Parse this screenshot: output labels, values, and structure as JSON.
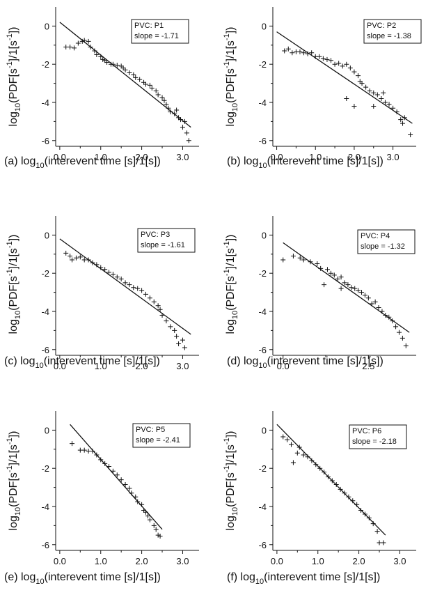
{
  "figure": {
    "x_label_text": "log",
    "x_label_sub": "10",
    "x_label_rest": "(interevent time [s]/1[s])",
    "y_label_text": "log",
    "y_label_sub": "10",
    "y_label_rest_1": "(PDF[s",
    "y_label_sup": "-1",
    "y_label_rest_2": "]/1[s",
    "y_label_sup_2": "-1",
    "y_label_rest_3": "])"
  },
  "chart_data": [
    {
      "type": "scatter",
      "panel_label": "(a)",
      "legend": [
        "PVC: P1",
        "slope = -1.71"
      ],
      "xlim": [
        -0.1,
        3.4
      ],
      "ylim": [
        -6.3,
        1.0
      ],
      "xticks": [
        0.0,
        1.0,
        2.0,
        3.0
      ],
      "xtick_labels": [
        "0.0",
        "1.0",
        "2.0",
        "3.0"
      ],
      "yticks": [
        0,
        -2,
        -4,
        -6
      ],
      "ytick_labels": [
        "0",
        "-2",
        "-4",
        "-6"
      ],
      "fit_line": {
        "x": [
          0.0,
          3.2
        ],
        "y": [
          0.2,
          -5.3
        ]
      },
      "series": [
        {
          "points": [
            [
              0.15,
              -1.1
            ],
            [
              0.25,
              -1.1
            ],
            [
              0.35,
              -1.15
            ],
            [
              0.45,
              -0.9
            ],
            [
              0.55,
              -0.8
            ],
            [
              0.6,
              -0.75
            ],
            [
              0.7,
              -0.8
            ],
            [
              0.75,
              -1.1
            ],
            [
              0.85,
              -1.3
            ],
            [
              0.9,
              -1.5
            ],
            [
              1.0,
              -1.6
            ],
            [
              1.05,
              -1.75
            ],
            [
              1.1,
              -1.8
            ],
            [
              1.15,
              -1.9
            ],
            [
              1.25,
              -2.0
            ],
            [
              1.3,
              -2.0
            ],
            [
              1.4,
              -2.05
            ],
            [
              1.5,
              -2.1
            ],
            [
              1.55,
              -2.2
            ],
            [
              1.6,
              -2.3
            ],
            [
              1.7,
              -2.45
            ],
            [
              1.8,
              -2.55
            ],
            [
              1.85,
              -2.7
            ],
            [
              1.95,
              -2.8
            ],
            [
              2.05,
              -2.95
            ],
            [
              2.1,
              -3.05
            ],
            [
              2.2,
              -3.1
            ],
            [
              2.25,
              -3.25
            ],
            [
              2.35,
              -3.4
            ],
            [
              2.4,
              -3.6
            ],
            [
              2.5,
              -3.75
            ],
            [
              2.55,
              -3.9
            ],
            [
              2.6,
              -4.1
            ],
            [
              2.65,
              -4.3
            ],
            [
              2.7,
              -4.5
            ],
            [
              2.8,
              -4.6
            ],
            [
              2.85,
              -4.4
            ],
            [
              2.9,
              -4.8
            ],
            [
              2.95,
              -4.9
            ],
            [
              3.0,
              -5.3
            ],
            [
              3.05,
              -5.0
            ],
            [
              3.1,
              -5.6
            ],
            [
              3.15,
              -6.0
            ]
          ]
        }
      ]
    },
    {
      "type": "scatter",
      "panel_label": "(b)",
      "legend": [
        "PVC: P2",
        "slope = -1.38"
      ],
      "xlim": [
        -0.1,
        3.6
      ],
      "ylim": [
        -6.3,
        1.0
      ],
      "xticks": [
        0.0,
        1.0,
        2.0,
        3.0
      ],
      "xtick_labels": [
        "0.0",
        "1.0",
        "2.0",
        "3.0"
      ],
      "yticks": [
        0,
        -2,
        -4,
        -6
      ],
      "ytick_labels": [
        "0",
        "-2",
        "-4",
        "-6"
      ],
      "fit_line": {
        "x": [
          0.0,
          3.5
        ],
        "y": [
          -0.3,
          -5.1
        ]
      },
      "series": [
        {
          "points": [
            [
              0.2,
              -1.3
            ],
            [
              0.3,
              -1.2
            ],
            [
              0.4,
              -1.4
            ],
            [
              0.5,
              -1.35
            ],
            [
              0.6,
              -1.35
            ],
            [
              0.7,
              -1.4
            ],
            [
              0.8,
              -1.45
            ],
            [
              0.9,
              -1.4
            ],
            [
              1.0,
              -1.6
            ],
            [
              1.1,
              -1.6
            ],
            [
              1.2,
              -1.7
            ],
            [
              1.3,
              -1.75
            ],
            [
              1.4,
              -1.8
            ],
            [
              1.5,
              -2.0
            ],
            [
              1.6,
              -1.95
            ],
            [
              1.7,
              -2.1
            ],
            [
              1.8,
              -2.0
            ],
            [
              1.9,
              -2.2
            ],
            [
              2.0,
              -2.4
            ],
            [
              2.1,
              -2.6
            ],
            [
              2.15,
              -2.9
            ],
            [
              2.2,
              -3.0
            ],
            [
              2.3,
              -3.2
            ],
            [
              2.4,
              -3.4
            ],
            [
              2.5,
              -3.5
            ],
            [
              2.6,
              -3.6
            ],
            [
              2.7,
              -3.8
            ],
            [
              2.75,
              -3.5
            ],
            [
              2.8,
              -4.0
            ],
            [
              2.9,
              -4.1
            ],
            [
              3.0,
              -4.3
            ],
            [
              3.1,
              -4.5
            ],
            [
              3.2,
              -4.9
            ],
            [
              3.25,
              -5.1
            ],
            [
              3.3,
              -4.8
            ],
            [
              3.45,
              -5.7
            ],
            [
              1.8,
              -3.8
            ],
            [
              2.0,
              -4.2
            ],
            [
              2.5,
              -4.2
            ]
          ]
        }
      ]
    },
    {
      "type": "scatter",
      "panel_label": "(c)",
      "legend": [
        "PVC: P3",
        "slope = -1.61"
      ],
      "xlim": [
        -0.1,
        3.4
      ],
      "ylim": [
        -6.3,
        1.0
      ],
      "xticks": [
        0.0,
        1.0,
        2.0,
        3.0
      ],
      "xtick_labels": [
        "0.0",
        "1.0",
        "2.0",
        "3.0"
      ],
      "yticks": [
        0,
        -2,
        -4,
        -6
      ],
      "ytick_labels": [
        "0",
        "-2",
        "-4",
        "-6"
      ],
      "fit_line": {
        "x": [
          0.0,
          3.2
        ],
        "y": [
          -0.2,
          -5.2
        ]
      },
      "series": [
        {
          "points": [
            [
              0.15,
              -0.95
            ],
            [
              0.25,
              -1.1
            ],
            [
              0.3,
              -1.3
            ],
            [
              0.4,
              -1.2
            ],
            [
              0.5,
              -1.15
            ],
            [
              0.6,
              -1.3
            ],
            [
              0.7,
              -1.3
            ],
            [
              0.8,
              -1.45
            ],
            [
              0.9,
              -1.55
            ],
            [
              1.0,
              -1.7
            ],
            [
              1.1,
              -1.8
            ],
            [
              1.2,
              -1.95
            ],
            [
              1.3,
              -2.05
            ],
            [
              1.4,
              -2.2
            ],
            [
              1.5,
              -2.3
            ],
            [
              1.6,
              -2.5
            ],
            [
              1.7,
              -2.6
            ],
            [
              1.8,
              -2.75
            ],
            [
              1.9,
              -2.8
            ],
            [
              2.0,
              -2.9
            ],
            [
              2.1,
              -3.1
            ],
            [
              2.2,
              -3.3
            ],
            [
              2.3,
              -3.5
            ],
            [
              2.4,
              -3.7
            ],
            [
              2.45,
              -3.9
            ],
            [
              2.5,
              -4.2
            ],
            [
              2.6,
              -4.5
            ],
            [
              2.7,
              -4.8
            ],
            [
              2.8,
              -5.0
            ],
            [
              2.85,
              -5.3
            ],
            [
              2.9,
              -5.7
            ],
            [
              3.0,
              -5.5
            ],
            [
              3.05,
              -5.9
            ]
          ]
        }
      ]
    },
    {
      "type": "scatter",
      "panel_label": "(d)",
      "legend": [
        "PVC: P4",
        "slope = -1.32"
      ],
      "xlim": [
        -0.3,
        3.9
      ],
      "ylim": [
        -6.3,
        1.0
      ],
      "xticks": [
        0.0,
        2.5
      ],
      "xtick_labels": [
        "0.0",
        "2.5"
      ],
      "yticks": [
        0,
        -2,
        -4,
        -6
      ],
      "ytick_labels": [
        "0",
        "-2",
        "-4",
        "-6"
      ],
      "fit_line": {
        "x": [
          0.0,
          3.7
        ],
        "y": [
          -0.4,
          -5.1
        ]
      },
      "series": [
        {
          "points": [
            [
              0.0,
              -1.3
            ],
            [
              0.3,
              -1.1
            ],
            [
              0.5,
              -1.2
            ],
            [
              0.6,
              -1.3
            ],
            [
              0.8,
              -1.4
            ],
            [
              1.0,
              -1.5
            ],
            [
              1.1,
              -1.75
            ],
            [
              1.3,
              -1.8
            ],
            [
              1.4,
              -2.0
            ],
            [
              1.5,
              -2.1
            ],
            [
              1.6,
              -2.3
            ],
            [
              1.7,
              -2.2
            ],
            [
              1.8,
              -2.5
            ],
            [
              1.9,
              -2.6
            ],
            [
              2.0,
              -2.75
            ],
            [
              2.1,
              -2.8
            ],
            [
              2.2,
              -2.9
            ],
            [
              2.3,
              -3.0
            ],
            [
              2.4,
              -3.15
            ],
            [
              2.5,
              -3.3
            ],
            [
              2.6,
              -3.6
            ],
            [
              2.7,
              -3.5
            ],
            [
              2.8,
              -3.8
            ],
            [
              2.9,
              -4.0
            ],
            [
              3.0,
              -4.2
            ],
            [
              3.1,
              -4.3
            ],
            [
              3.2,
              -4.5
            ],
            [
              3.3,
              -4.8
            ],
            [
              3.4,
              -5.1
            ],
            [
              3.5,
              -5.4
            ],
            [
              3.6,
              -5.8
            ],
            [
              1.2,
              -2.6
            ],
            [
              1.7,
              -2.8
            ]
          ]
        }
      ]
    },
    {
      "type": "scatter",
      "panel_label": "(e)",
      "legend": [
        "PVC: P5",
        "slope = -2.41"
      ],
      "xlim": [
        -0.1,
        3.4
      ],
      "ylim": [
        -6.3,
        1.0
      ],
      "xticks": [
        0.0,
        1.0,
        2.0,
        3.0
      ],
      "xtick_labels": [
        "0.0",
        "1.0",
        "2.0",
        "3.0"
      ],
      "yticks": [
        0,
        -2,
        -4,
        -6
      ],
      "ytick_labels": [
        "0",
        "-2",
        "-4",
        "-6"
      ],
      "fit_line": {
        "x": [
          0.25,
          2.5
        ],
        "y": [
          0.3,
          -5.2
        ]
      },
      "series": [
        {
          "points": [
            [
              0.3,
              -0.7
            ],
            [
              0.5,
              -1.05
            ],
            [
              0.6,
              -1.05
            ],
            [
              0.7,
              -1.1
            ],
            [
              0.8,
              -1.1
            ],
            [
              0.9,
              -1.3
            ],
            [
              1.0,
              -1.55
            ],
            [
              1.1,
              -1.75
            ],
            [
              1.2,
              -1.9
            ],
            [
              1.3,
              -2.15
            ],
            [
              1.4,
              -2.35
            ],
            [
              1.5,
              -2.6
            ],
            [
              1.6,
              -2.85
            ],
            [
              1.7,
              -3.05
            ],
            [
              1.75,
              -3.3
            ],
            [
              1.85,
              -3.5
            ],
            [
              1.9,
              -3.75
            ],
            [
              2.0,
              -3.9
            ],
            [
              2.05,
              -4.2
            ],
            [
              2.1,
              -4.3
            ],
            [
              2.15,
              -4.5
            ],
            [
              2.2,
              -4.7
            ],
            [
              2.3,
              -5.0
            ],
            [
              2.35,
              -5.2
            ],
            [
              2.4,
              -5.5
            ],
            [
              2.45,
              -5.55
            ]
          ]
        }
      ]
    },
    {
      "type": "scatter",
      "panel_label": "(f)",
      "legend": [
        "PVC: P6",
        "slope = -2.18"
      ],
      "xlim": [
        -0.1,
        3.4
      ],
      "ylim": [
        -6.3,
        1.0
      ],
      "xticks": [
        0.0,
        1.0,
        2.0,
        3.0
      ],
      "xtick_labels": [
        "0.0",
        "1.0",
        "2.0",
        "3.0"
      ],
      "yticks": [
        0,
        -2,
        -4,
        -6
      ],
      "ytick_labels": [
        "0",
        "-2",
        "-4",
        "-6"
      ],
      "fit_line": {
        "x": [
          0.0,
          2.65
        ],
        "y": [
          0.3,
          -5.5
        ]
      },
      "series": [
        {
          "points": [
            [
              0.15,
              -0.35
            ],
            [
              0.25,
              -0.5
            ],
            [
              0.35,
              -0.75
            ],
            [
              0.4,
              -1.7
            ],
            [
              0.5,
              -1.2
            ],
            [
              0.55,
              -0.9
            ],
            [
              0.65,
              -1.3
            ],
            [
              0.75,
              -1.4
            ],
            [
              0.85,
              -1.6
            ],
            [
              0.95,
              -1.8
            ],
            [
              1.05,
              -2.0
            ],
            [
              1.15,
              -2.2
            ],
            [
              1.25,
              -2.45
            ],
            [
              1.35,
              -2.65
            ],
            [
              1.45,
              -2.85
            ],
            [
              1.55,
              -3.1
            ],
            [
              1.65,
              -3.3
            ],
            [
              1.75,
              -3.5
            ],
            [
              1.85,
              -3.7
            ],
            [
              1.95,
              -3.9
            ],
            [
              2.05,
              -4.2
            ],
            [
              2.15,
              -4.4
            ],
            [
              2.25,
              -4.6
            ],
            [
              2.35,
              -4.9
            ],
            [
              2.45,
              -5.3
            ],
            [
              2.5,
              -5.9
            ],
            [
              2.6,
              -5.9
            ]
          ]
        }
      ]
    }
  ]
}
